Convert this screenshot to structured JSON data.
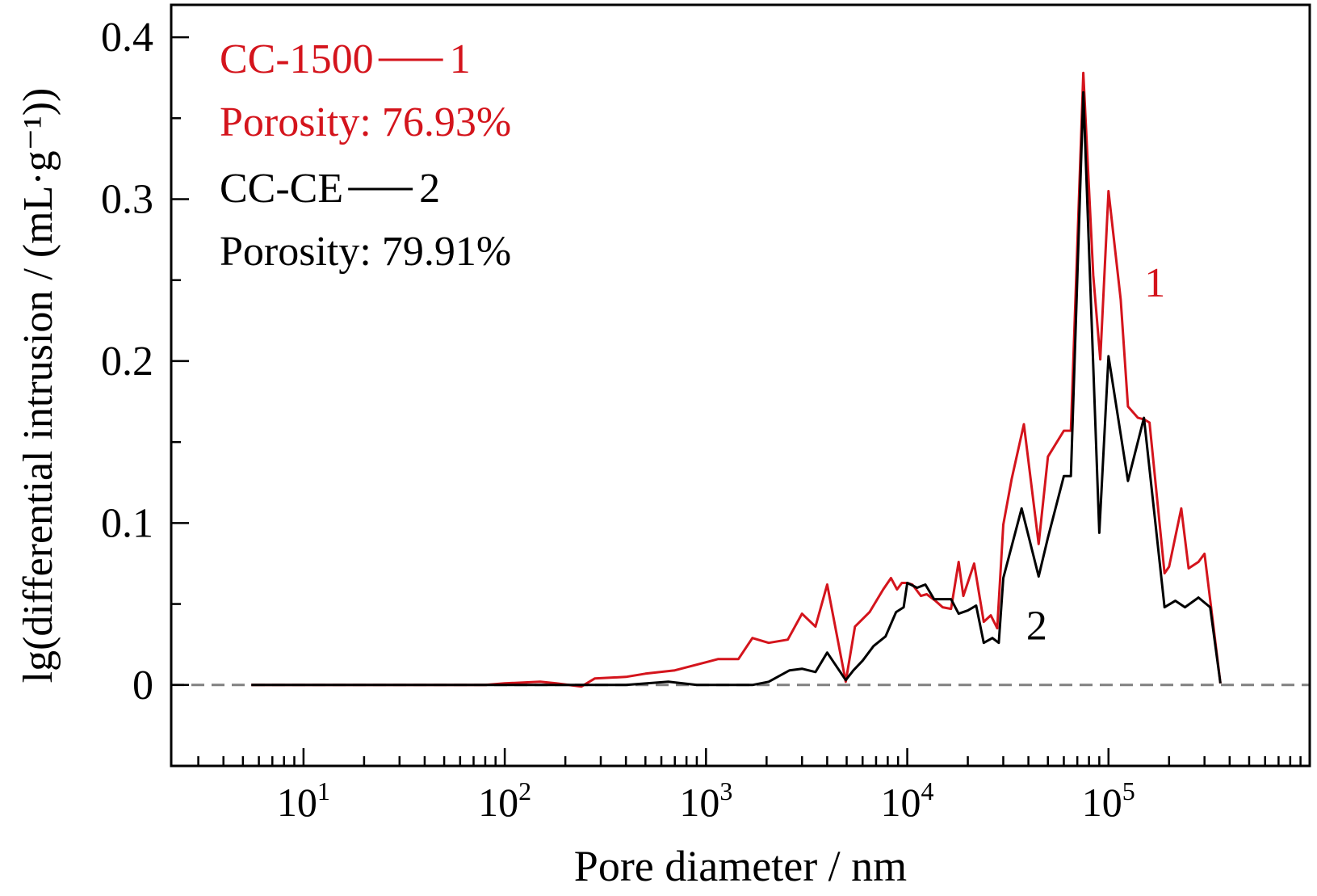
{
  "colors": {
    "series_1": "#d4141c",
    "series_2": "#000000",
    "baseline": "#808080",
    "axes": "#000000"
  },
  "chart_data": {
    "type": "line",
    "xlabel": "Pore diameter / nm",
    "ylabel": "lg(differential intrusion / (mL·g⁻¹))",
    "x_scale": "log",
    "xlim": [
      2.2,
      1000000
    ],
    "ylim": [
      -0.05,
      0.42
    ],
    "x_ticks": [
      {
        "value": 10,
        "base": "10",
        "exp": "1"
      },
      {
        "value": 100,
        "base": "10",
        "exp": "2"
      },
      {
        "value": 1000,
        "base": "10",
        "exp": "3"
      },
      {
        "value": 10000,
        "base": "10",
        "exp": "4"
      },
      {
        "value": 100000,
        "base": "10",
        "exp": "5"
      }
    ],
    "y_ticks": [
      {
        "value": 0,
        "label": "0"
      },
      {
        "value": 0.1,
        "label": "0.1"
      },
      {
        "value": 0.2,
        "label": "0.2"
      },
      {
        "value": 0.3,
        "label": "0.3"
      },
      {
        "value": 0.4,
        "label": "0.4"
      }
    ],
    "y_minor_ticks": [
      -0.05,
      0.05,
      0.15,
      0.25,
      0.35
    ],
    "grid": false,
    "baseline_value": 0,
    "legend": {
      "placement": "top-left",
      "entries": [
        {
          "name": "CC-1500",
          "marker": "1",
          "porosity": "Porosity: 76.93%",
          "color": "#d4141c"
        },
        {
          "name": "CC-CE",
          "marker": "2",
          "porosity": "Porosity: 79.91%",
          "color": "#000000"
        }
      ]
    },
    "curve_labels": [
      {
        "text": "1",
        "color": "#d4141c",
        "x": 170000,
        "y": 0.24
      },
      {
        "text": "2",
        "color": "#000000",
        "x": 44000,
        "y": 0.028
      }
    ],
    "series": [
      {
        "name": "CC-1500",
        "color": "#d4141c",
        "x": [
          5.5,
          20,
          50,
          80,
          100,
          150,
          180,
          240,
          280,
          400,
          500,
          700,
          1000,
          1150,
          1450,
          1700,
          2050,
          2550,
          3000,
          3500,
          4000,
          4950,
          5500,
          6500,
          7600,
          8300,
          8900,
          9400,
          10000,
          10600,
          11700,
          12500,
          13800,
          15000,
          16500,
          18000,
          19000,
          21500,
          24000,
          26000,
          28000,
          30000,
          33000,
          38000,
          45000,
          50000,
          60000,
          65000,
          75000,
          84000,
          91000,
          100000,
          115000,
          125000,
          140000,
          150000,
          160000,
          190000,
          200000,
          230000,
          250000,
          280000,
          300000,
          360000
        ],
        "y": [
          0,
          0,
          0,
          0,
          0.001,
          0.002,
          0.001,
          -0.001,
          0.004,
          0.005,
          0.007,
          0.009,
          0.014,
          0.016,
          0.016,
          0.029,
          0.026,
          0.028,
          0.044,
          0.036,
          0.062,
          0.002,
          0.036,
          0.045,
          0.059,
          0.066,
          0.059,
          0.063,
          0.063,
          0.062,
          0.055,
          0.056,
          0.052,
          0.048,
          0.047,
          0.076,
          0.055,
          0.075,
          0.039,
          0.043,
          0.035,
          0.099,
          0.127,
          0.161,
          0.087,
          0.141,
          0.157,
          0.157,
          0.378,
          0.253,
          0.201,
          0.305,
          0.238,
          0.172,
          0.165,
          0.164,
          0.162,
          0.069,
          0.073,
          0.109,
          0.072,
          0.076,
          0.081,
          0.001
        ]
      },
      {
        "name": "CC-CE",
        "color": "#000000",
        "x": [
          5.5,
          20,
          50,
          80,
          100,
          150,
          250,
          400,
          650,
          900,
          1100,
          1700,
          2050,
          2600,
          3000,
          3500,
          4000,
          4950,
          5400,
          6000,
          6800,
          7800,
          8800,
          9600,
          10000,
          11200,
          12300,
          13600,
          15000,
          16500,
          18000,
          20000,
          22000,
          24000,
          26500,
          28500,
          30000,
          37000,
          45000,
          50000,
          60000,
          65000,
          75000,
          90000,
          100000,
          125000,
          150000,
          190000,
          215000,
          240000,
          280000,
          320000,
          360000
        ],
        "y": [
          0,
          0,
          0,
          0,
          0,
          0,
          0,
          0,
          0.002,
          0,
          0,
          0,
          0.002,
          0.009,
          0.01,
          0.008,
          0.02,
          0.003,
          0.009,
          0.015,
          0.024,
          0.03,
          0.045,
          0.048,
          0.063,
          0.06,
          0.062,
          0.053,
          0.053,
          0.053,
          0.044,
          0.046,
          0.049,
          0.026,
          0.029,
          0.026,
          0.066,
          0.109,
          0.067,
          0.091,
          0.129,
          0.129,
          0.366,
          0.094,
          0.203,
          0.126,
          0.165,
          0.048,
          0.052,
          0.048,
          0.054,
          0.048,
          0.001
        ]
      }
    ]
  }
}
